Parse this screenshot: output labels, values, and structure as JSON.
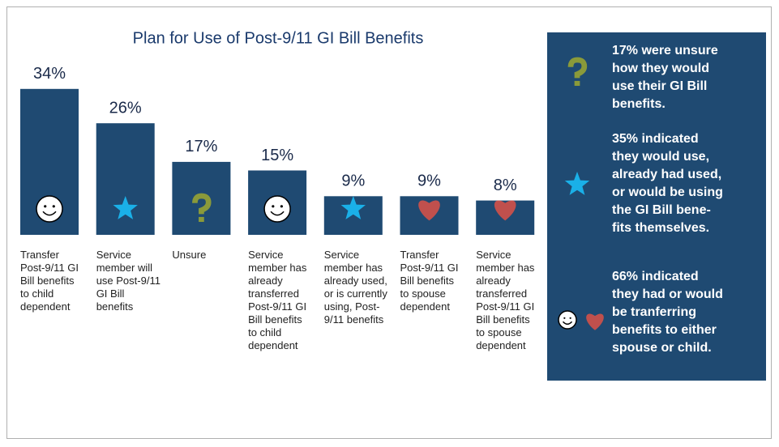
{
  "chart_data": {
    "type": "bar",
    "title": "Plan for Use of Post-9/11 GI Bill Benefits",
    "categories": [
      "Transfer Post-9/11 GI Bill benefits to child dependent",
      "Service member will use Post-9/11 GI Bill benefits",
      "Unsure",
      "Service member has already transferred Post-9/11 GI Bill benefits to child dependent",
      "Service member has already used, or is currently using, Post-9/11 benefits",
      "Transfer Post-9/11 GI Bill benefits to spouse dependent",
      "Service member has already transferred Post-9/11 GI Bill benefits to spouse dependent"
    ],
    "values": [
      34,
      26,
      17,
      15,
      9,
      9,
      8
    ],
    "value_labels": [
      "34%",
      "26%",
      "17%",
      "15%",
      "9%",
      "9%",
      "8%"
    ],
    "color": "#1f4a72",
    "annotations": [
      {
        "lines": [
          "17% were unsure",
          "how they would",
          "use their GI Bill",
          "benefits."
        ]
      },
      {
        "lines": [
          "35% indicated",
          "they would use,",
          "already had used,",
          "or would be using",
          "the GI Bill bene-",
          "fits themselves."
        ]
      },
      {
        "lines": [
          "66% indicated",
          "they had or would",
          "be tranferring",
          "benefits to either",
          "spouse or child."
        ]
      }
    ]
  }
}
